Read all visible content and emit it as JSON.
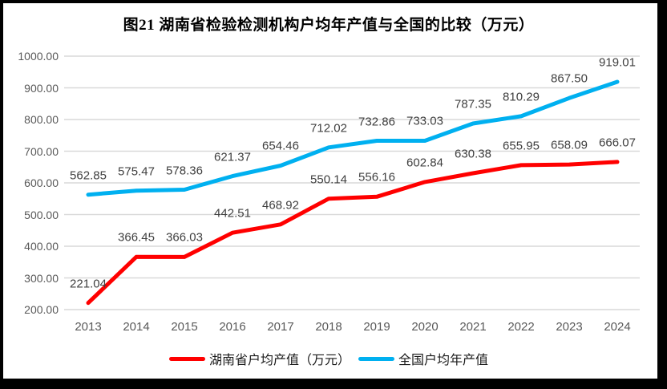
{
  "chart_data": {
    "type": "line",
    "title": "图21 湖南省检验检测机构户均年产值与全国的比较（万元）",
    "categories": [
      "2013",
      "2014",
      "2015",
      "2016",
      "2017",
      "2018",
      "2019",
      "2020",
      "2021",
      "2022",
      "2023",
      "2024"
    ],
    "series": [
      {
        "name": "湖南省户均产值（万元）",
        "color": "#FF0000",
        "values": [
          221.04,
          366.45,
          366.03,
          442.51,
          468.92,
          550.14,
          556.16,
          602.84,
          630.38,
          655.95,
          658.09,
          666.07
        ]
      },
      {
        "name": "全国户均年产值",
        "color": "#00B0F0",
        "values": [
          562.85,
          575.47,
          578.36,
          621.37,
          654.46,
          712.02,
          732.86,
          733.03,
          787.35,
          810.29,
          867.5,
          919.01
        ]
      }
    ],
    "xlabel": "",
    "ylabel": "",
    "ylim": [
      200,
      1000
    ],
    "ytick_step": 100,
    "ytick_labels": [
      "1000.00",
      "900.00",
      "800.00",
      "700.00",
      "600.00",
      "500.00",
      "400.00",
      "300.00",
      "200.00"
    ],
    "grid": true,
    "data_labels": true,
    "legend_position": "bottom"
  },
  "colors": {
    "grid": "#D9D9D9",
    "axis_text": "#595959",
    "data_label_text": "#404040",
    "series_hunan": "#FF0000",
    "series_national": "#00B0F0",
    "background": "#FFFFFF",
    "frame": "#000000"
  }
}
